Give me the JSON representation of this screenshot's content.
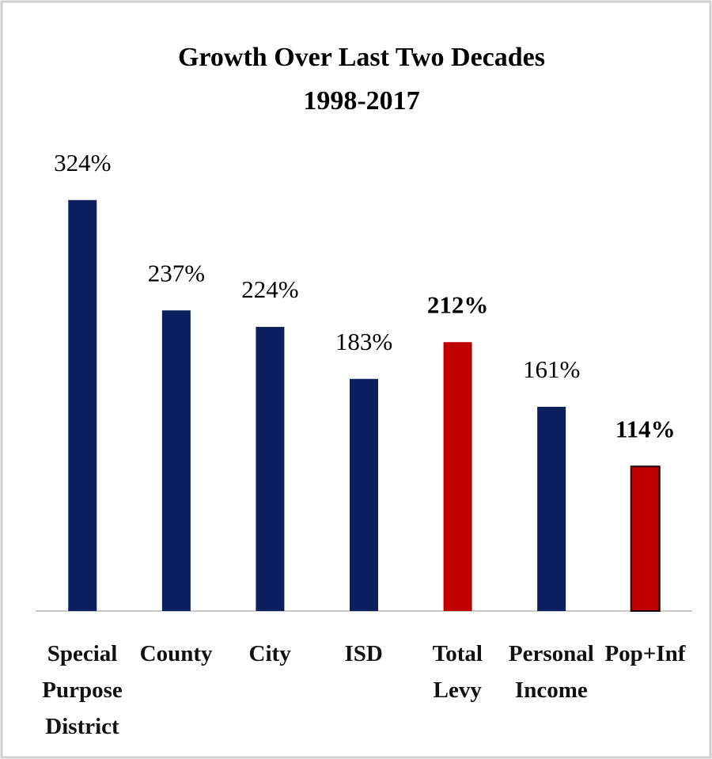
{
  "chart_data": {
    "type": "bar",
    "title": "Growth Over Last Two Decades",
    "subtitle": "1998-2017",
    "categories": [
      "Special Purpose District",
      "County",
      "City",
      "ISD",
      "Total Levy",
      "Personal Income",
      "Pop+Inf"
    ],
    "values": [
      324,
      237,
      224,
      183,
      212,
      161,
      114
    ],
    "value_labels": [
      "324%",
      "237%",
      "224%",
      "183%",
      "212%",
      "161%",
      "114%"
    ],
    "colors": [
      "#0b1f5e",
      "#0b1f5e",
      "#0b1f5e",
      "#0b1f5e",
      "#c00000",
      "#0b1f5e",
      "#c00000"
    ],
    "bold_labels": [
      false,
      false,
      false,
      false,
      true,
      false,
      true
    ],
    "ylim": [
      0,
      400
    ]
  }
}
